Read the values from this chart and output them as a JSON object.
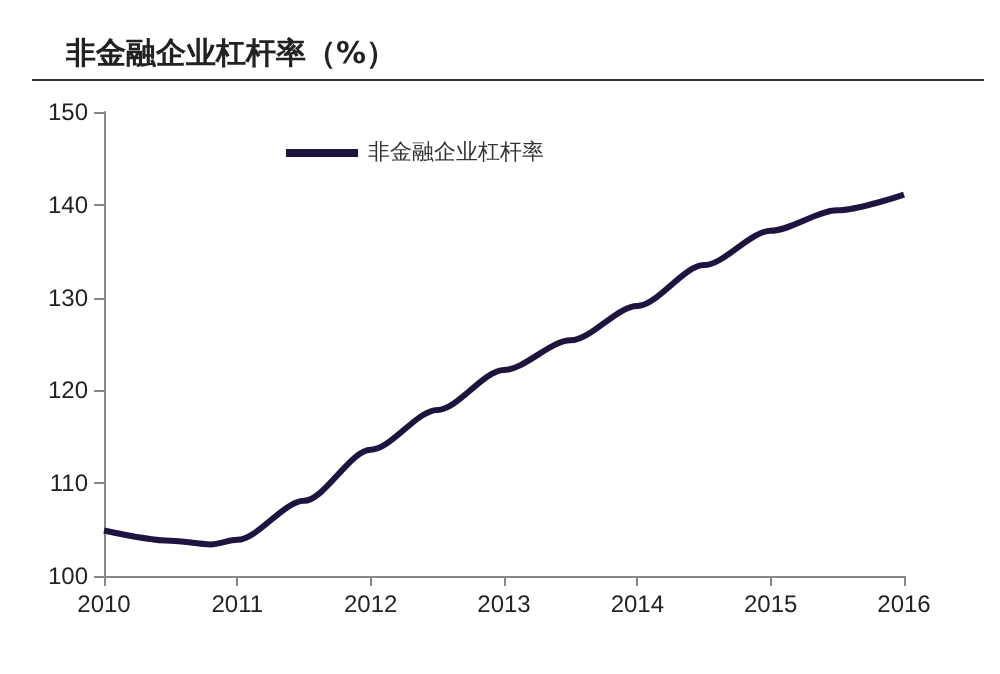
{
  "chart_data": {
    "type": "line",
    "title": "非金融企业杠杆率（%）",
    "x": [
      2010,
      2010.5,
      2010.8,
      2011,
      2011.5,
      2012,
      2012.5,
      2013,
      2013.5,
      2014,
      2014.5,
      2015,
      2015.5,
      2016
    ],
    "series": [
      {
        "name": "非金融企业杠杆率",
        "color": "#1f1440",
        "values": [
          104.9,
          103.8,
          103.4,
          103.9,
          108.1,
          113.6,
          117.9,
          122.2,
          125.4,
          129.1,
          133.5,
          137.2,
          139.4,
          141.1
        ]
      }
    ],
    "xlim": [
      2010,
      2016
    ],
    "xticks": [
      2010,
      2011,
      2012,
      2013,
      2014,
      2015,
      2016
    ],
    "ylim": [
      100,
      150
    ],
    "yticks": [
      100,
      110,
      120,
      130,
      140,
      150
    ],
    "grid": false,
    "legend": "top left",
    "marker": "none",
    "line_style": "solid"
  }
}
